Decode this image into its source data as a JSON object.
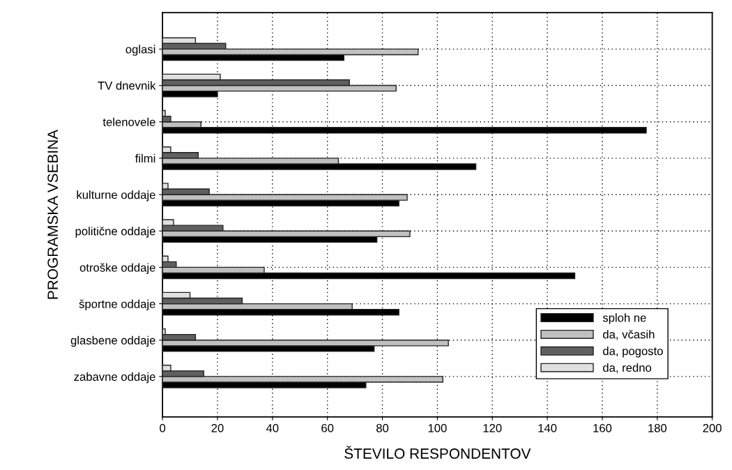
{
  "chart_data": {
    "type": "bar",
    "orientation": "horizontal",
    "xlabel": "ŠTEVILO RESPONDENTOV",
    "ylabel": "PROGRAMSKA VSEBINA",
    "categories": [
      "oglasi",
      "TV dnevnik",
      "telenovele",
      "filmi",
      "kulturne oddaje",
      "politične oddaje",
      "otroške oddaje",
      "športne oddaje",
      "glasbene oddaje",
      "zabavne oddaje"
    ],
    "series": [
      {
        "name": "sploh ne",
        "color": "#000000",
        "values": [
          66,
          20,
          176,
          114,
          86,
          78,
          150,
          86,
          77,
          74
        ]
      },
      {
        "name": "da, včasih",
        "color": "#c0c0c0",
        "values": [
          93,
          85,
          14,
          64,
          89,
          90,
          37,
          69,
          104,
          102
        ]
      },
      {
        "name": "da, pogosto",
        "color": "#606060",
        "values": [
          23,
          68,
          3,
          13,
          17,
          22,
          5,
          29,
          12,
          15
        ]
      },
      {
        "name": "da, redno",
        "color": "#e0e0e0",
        "values": [
          12,
          21,
          1,
          3,
          2,
          4,
          2,
          10,
          1,
          3
        ]
      }
    ],
    "xlim": [
      0,
      200
    ],
    "xticks": [
      0,
      20,
      40,
      60,
      80,
      100,
      120,
      140,
      160,
      180,
      200
    ],
    "grid": true,
    "legend": "bottom right"
  }
}
